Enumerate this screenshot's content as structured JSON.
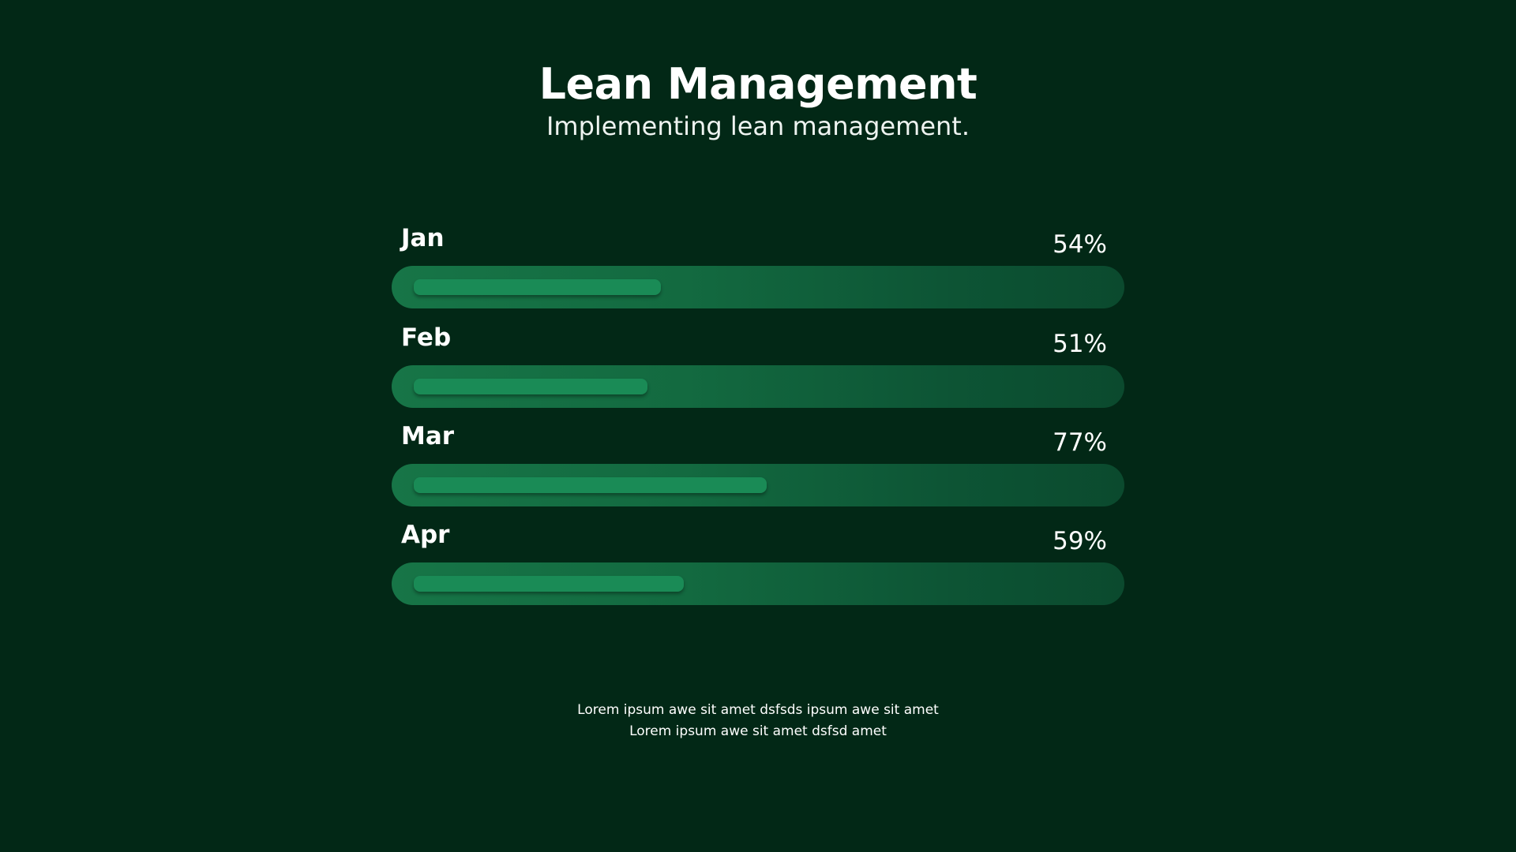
{
  "chart_data": {
    "type": "bar",
    "title": "Lean Management",
    "subtitle": "Implementing lean management.",
    "categories": [
      "Jan",
      "Feb",
      "Mar",
      "Apr"
    ],
    "values": [
      54,
      51,
      77,
      59
    ],
    "value_labels": [
      "54%",
      "51%",
      "77%",
      "59%"
    ],
    "unit": "%",
    "xlim": [
      0,
      100
    ],
    "orientation": "horizontal",
    "grid": false,
    "legend": "none"
  },
  "footer": {
    "line1": "Lorem ipsum awe sit amet dsfsds ipsum awe sit amet",
    "line2": "Lorem ipsum awe sit amet dsfsd amet"
  },
  "colors": {
    "background": "#022816",
    "track_start": "#177547",
    "track_end": "#0b4a2e",
    "fill": "#1a8b56",
    "text": "#ffffff"
  }
}
